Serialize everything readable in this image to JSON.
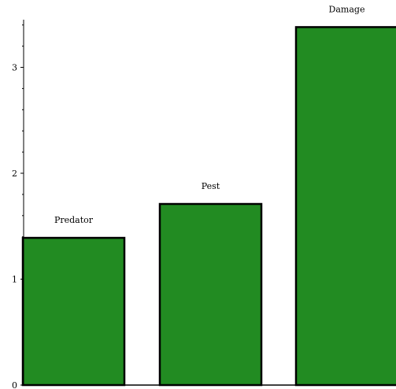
{
  "chart_data": {
    "type": "bar",
    "categories": [
      "Predator",
      "Pest",
      "Damage"
    ],
    "values": [
      1.39,
      1.71,
      3.38
    ],
    "ylim": [
      0,
      3.45
    ],
    "yticks": [
      0,
      1,
      2,
      3
    ],
    "grid": false,
    "bar_color": "#228b22",
    "bar_edge_color": "#000000"
  }
}
